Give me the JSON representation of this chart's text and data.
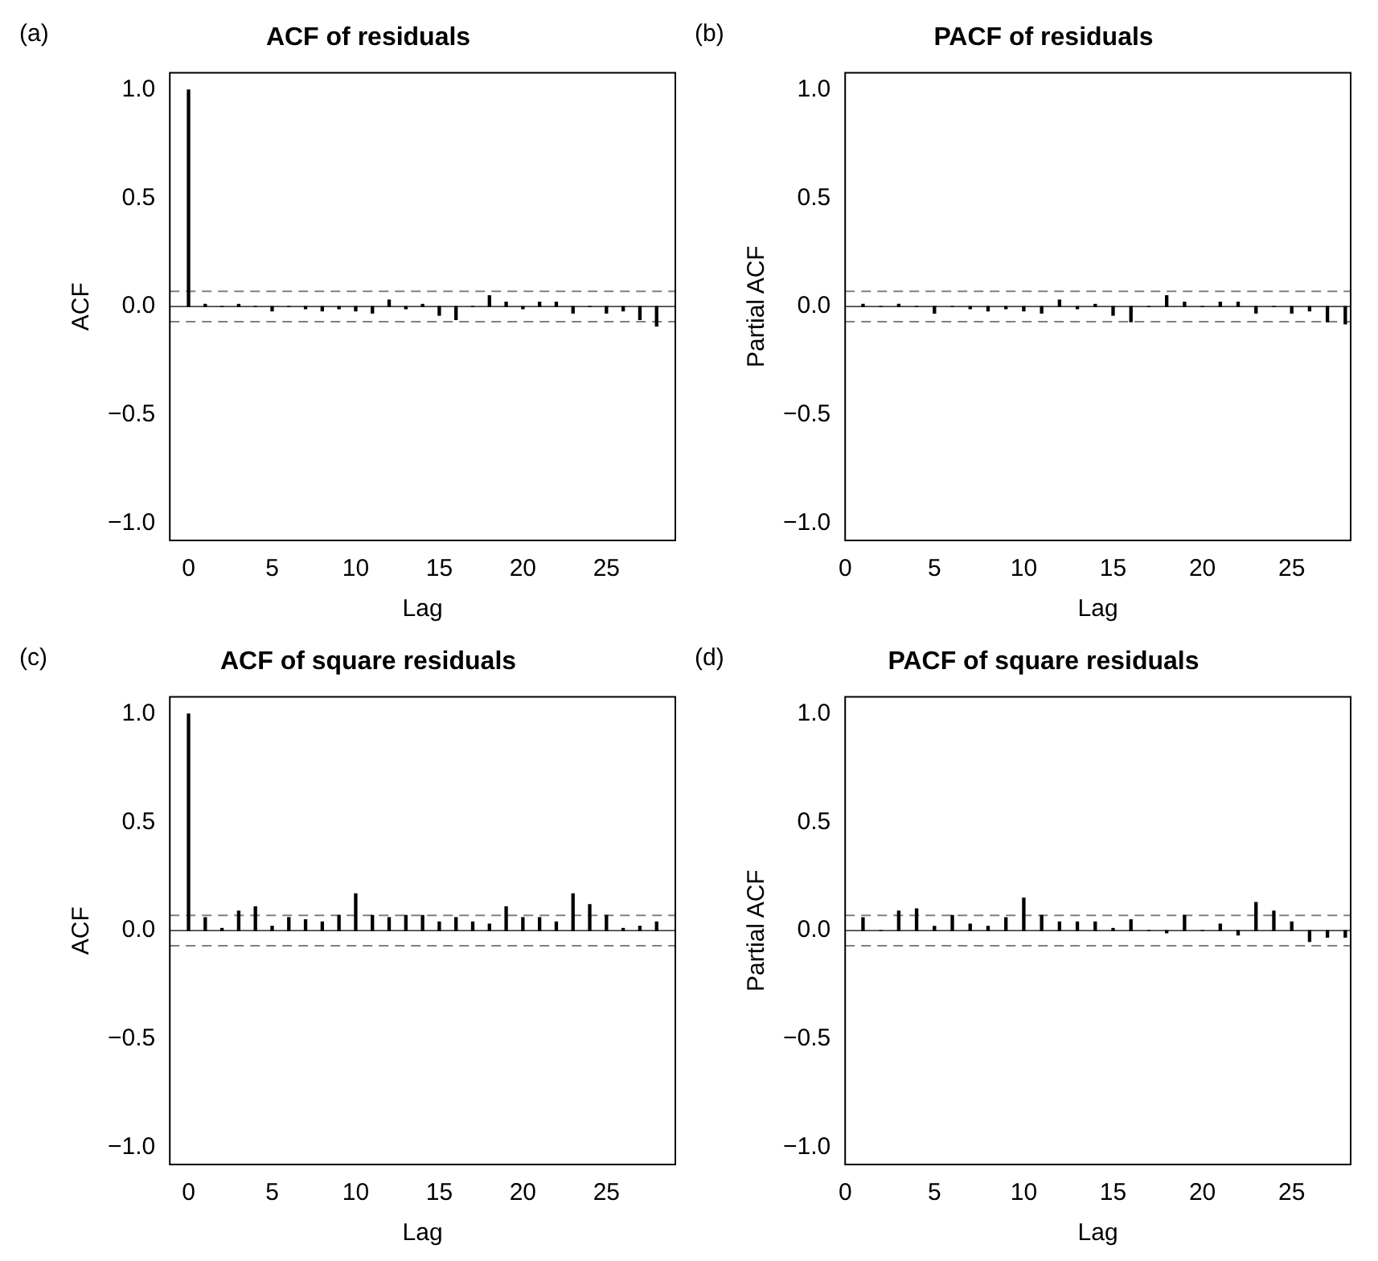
{
  "chart_data": [
    {
      "type": "bar",
      "title": "ACF of residuals",
      "xlabel": "Lag",
      "ylabel": "ACF",
      "annotations": [
        "(a)"
      ],
      "color": "#000000",
      "x": [
        0,
        1,
        2,
        3,
        4,
        5,
        6,
        7,
        8,
        9,
        10,
        11,
        12,
        13,
        14,
        15,
        16,
        17,
        18,
        19,
        20,
        21,
        22,
        23,
        24,
        25,
        26,
        27,
        28
      ],
      "values": [
        1,
        0.01,
        0,
        0.01,
        0,
        -0.02,
        0,
        -0.01,
        -0.02,
        -0.01,
        -0.02,
        -0.03,
        0.03,
        -0.01,
        0.01,
        -0.04,
        -0.06,
        0,
        0.05,
        0.02,
        -0.01,
        0.02,
        0.02,
        -0.03,
        0,
        -0.03,
        -0.02,
        -0.06,
        -0.09
      ],
      "xlim": [
        -1.12,
        29.12
      ],
      "xticks": [
        0,
        5,
        10,
        15,
        20,
        25
      ],
      "ylim": [
        -1.08,
        1.08
      ],
      "yticks": [
        {
          "value": -1,
          "label": "−1.0"
        },
        {
          "value": -0.5,
          "label": "−0.5"
        },
        {
          "value": 0,
          "label": "0.0"
        },
        {
          "value": 0.5,
          "label": "0.5"
        },
        {
          "value": 1,
          "label": "1.0"
        }
      ],
      "ref_lines": [
        {
          "axis": "y",
          "value": 0,
          "color": "#000000",
          "line_style": "solid"
        },
        {
          "axis": "y",
          "value": 0.07,
          "color": "#808080",
          "line_style": "dashed"
        },
        {
          "axis": "y",
          "value": -0.07,
          "color": "#808080",
          "line_style": "dashed"
        }
      ]
    },
    {
      "type": "bar",
      "title": "PACF of residuals",
      "xlabel": "Lag",
      "ylabel": "Partial ACF",
      "annotations": [
        "(b)"
      ],
      "color": "#000000",
      "x": [
        1,
        2,
        3,
        4,
        5,
        6,
        7,
        8,
        9,
        10,
        11,
        12,
        13,
        14,
        15,
        16,
        17,
        18,
        19,
        20,
        21,
        22,
        23,
        24,
        25,
        26,
        27,
        28
      ],
      "values": [
        0.01,
        0,
        0.01,
        0,
        -0.03,
        0,
        -0.01,
        -0.02,
        -0.01,
        -0.02,
        -0.03,
        0.03,
        -0.01,
        0.01,
        -0.04,
        -0.07,
        0,
        0.05,
        0.02,
        0,
        0.02,
        0.02,
        -0.03,
        0,
        -0.03,
        -0.02,
        -0.07,
        -0.08
      ],
      "xlim": [
        0,
        28.3
      ],
      "xticks": [
        0,
        5,
        10,
        15,
        20,
        25
      ],
      "ylim": [
        -1.08,
        1.08
      ],
      "yticks": [
        {
          "value": -1,
          "label": "−1.0"
        },
        {
          "value": -0.5,
          "label": "−0.5"
        },
        {
          "value": 0,
          "label": "0.0"
        },
        {
          "value": 0.5,
          "label": "0.5"
        },
        {
          "value": 1,
          "label": "1.0"
        }
      ],
      "ref_lines": [
        {
          "axis": "y",
          "value": 0,
          "color": "#000000",
          "line_style": "solid"
        },
        {
          "axis": "y",
          "value": 0.07,
          "color": "#808080",
          "line_style": "dashed"
        },
        {
          "axis": "y",
          "value": -0.07,
          "color": "#808080",
          "line_style": "dashed"
        }
      ]
    },
    {
      "type": "bar",
      "title": "ACF of square residuals",
      "xlabel": "Lag",
      "ylabel": "ACF",
      "annotations": [
        "(c)"
      ],
      "color": "#000000",
      "x": [
        0,
        1,
        2,
        3,
        4,
        5,
        6,
        7,
        8,
        9,
        10,
        11,
        12,
        13,
        14,
        15,
        16,
        17,
        18,
        19,
        20,
        21,
        22,
        23,
        24,
        25,
        26,
        27,
        28
      ],
      "values": [
        1,
        0.06,
        0.01,
        0.09,
        0.11,
        0.02,
        0.06,
        0.05,
        0.04,
        0.07,
        0.17,
        0.07,
        0.06,
        0.07,
        0.07,
        0.04,
        0.06,
        0.04,
        0.03,
        0.11,
        0.06,
        0.06,
        0.04,
        0.17,
        0.12,
        0.07,
        0.01,
        0.02,
        0.04
      ],
      "xlim": [
        -1.12,
        29.12
      ],
      "xticks": [
        0,
        5,
        10,
        15,
        20,
        25
      ],
      "ylim": [
        -1.08,
        1.08
      ],
      "yticks": [
        {
          "value": -1,
          "label": "−1.0"
        },
        {
          "value": -0.5,
          "label": "−0.5"
        },
        {
          "value": 0,
          "label": "0.0"
        },
        {
          "value": 0.5,
          "label": "0.5"
        },
        {
          "value": 1,
          "label": "1.0"
        }
      ],
      "ref_lines": [
        {
          "axis": "y",
          "value": 0,
          "color": "#000000",
          "line_style": "solid"
        },
        {
          "axis": "y",
          "value": 0.07,
          "color": "#808080",
          "line_style": "dashed"
        },
        {
          "axis": "y",
          "value": -0.07,
          "color": "#808080",
          "line_style": "dashed"
        }
      ]
    },
    {
      "type": "bar",
      "title": "PACF of square residuals",
      "xlabel": "Lag",
      "ylabel": "Partial ACF",
      "annotations": [
        "(d)"
      ],
      "color": "#000000",
      "x": [
        1,
        2,
        3,
        4,
        5,
        6,
        7,
        8,
        9,
        10,
        11,
        12,
        13,
        14,
        15,
        16,
        17,
        18,
        19,
        20,
        21,
        22,
        23,
        24,
        25,
        26,
        27,
        28
      ],
      "values": [
        0.06,
        0,
        0.09,
        0.1,
        0.02,
        0.07,
        0.03,
        0.02,
        0.06,
        0.15,
        0.07,
        0.04,
        0.04,
        0.04,
        0.01,
        0.05,
        0,
        -0.01,
        0.07,
        0,
        0.03,
        -0.02,
        0.13,
        0.09,
        0.04,
        -0.05,
        -0.03,
        -0.03
      ],
      "xlim": [
        0,
        28.3
      ],
      "xticks": [
        0,
        5,
        10,
        15,
        20,
        25
      ],
      "ylim": [
        -1.08,
        1.08
      ],
      "yticks": [
        {
          "value": -1,
          "label": "−1.0"
        },
        {
          "value": -0.5,
          "label": "−0.5"
        },
        {
          "value": 0,
          "label": "0.0"
        },
        {
          "value": 0.5,
          "label": "0.5"
        },
        {
          "value": 1,
          "label": "1.0"
        }
      ],
      "ref_lines": [
        {
          "axis": "y",
          "value": 0,
          "color": "#000000",
          "line_style": "solid"
        },
        {
          "axis": "y",
          "value": 0.07,
          "color": "#808080",
          "line_style": "dashed"
        },
        {
          "axis": "y",
          "value": -0.07,
          "color": "#808080",
          "line_style": "dashed"
        }
      ]
    }
  ]
}
